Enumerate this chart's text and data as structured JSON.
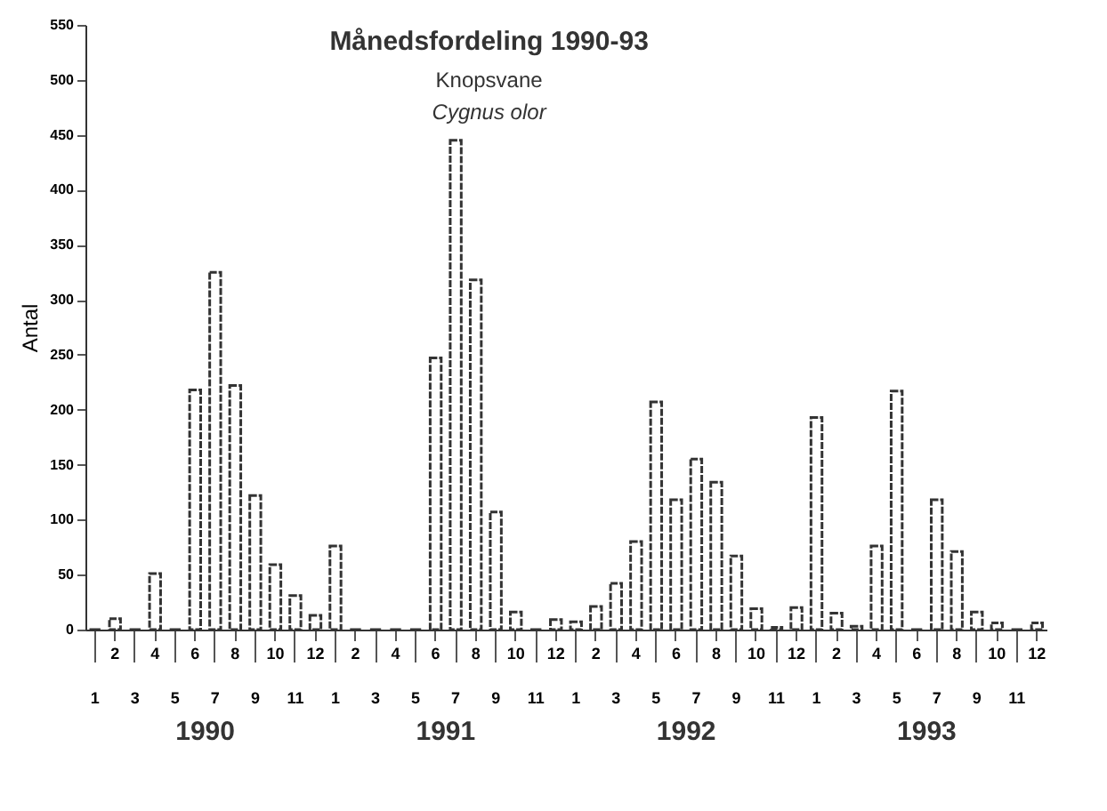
{
  "chart_data": {
    "type": "bar",
    "title": "Månedsfordeling 1990-93",
    "subtitle": "Knopsvane\nCygnus olor",
    "ylabel": "Antal",
    "categories": [
      "1",
      "2",
      "3",
      "4",
      "5",
      "6",
      "7",
      "8",
      "9",
      "10",
      "11",
      "12",
      "1",
      "2",
      "3",
      "4",
      "5",
      "6",
      "7",
      "8",
      "9",
      "10",
      "11",
      "12",
      "1",
      "2",
      "3",
      "4",
      "5",
      "6",
      "7",
      "8",
      "9",
      "10",
      "11",
      "12",
      "1",
      "2",
      "3",
      "4",
      "5",
      "6",
      "7",
      "8",
      "9",
      "10",
      "11",
      "12"
    ],
    "values": [
      0,
      10,
      0,
      51,
      0,
      218,
      325,
      222,
      122,
      59,
      31,
      13,
      76,
      0,
      0,
      0,
      0,
      247,
      445,
      318,
      107,
      16,
      0,
      9,
      7,
      21,
      42,
      80,
      207,
      118,
      155,
      134,
      67,
      19,
      2,
      20,
      193,
      15,
      3,
      76,
      217,
      0,
      118,
      71,
      16,
      6,
      0,
      6
    ],
    "color": "#333333",
    "ylim": [
      0,
      550
    ],
    "yticks": [
      0,
      50,
      100,
      150,
      200,
      250,
      300,
      350,
      400,
      450,
      500,
      550
    ],
    "annotations": [
      "1990",
      "1991",
      "1992",
      "1993"
    ],
    "grid": false
  }
}
